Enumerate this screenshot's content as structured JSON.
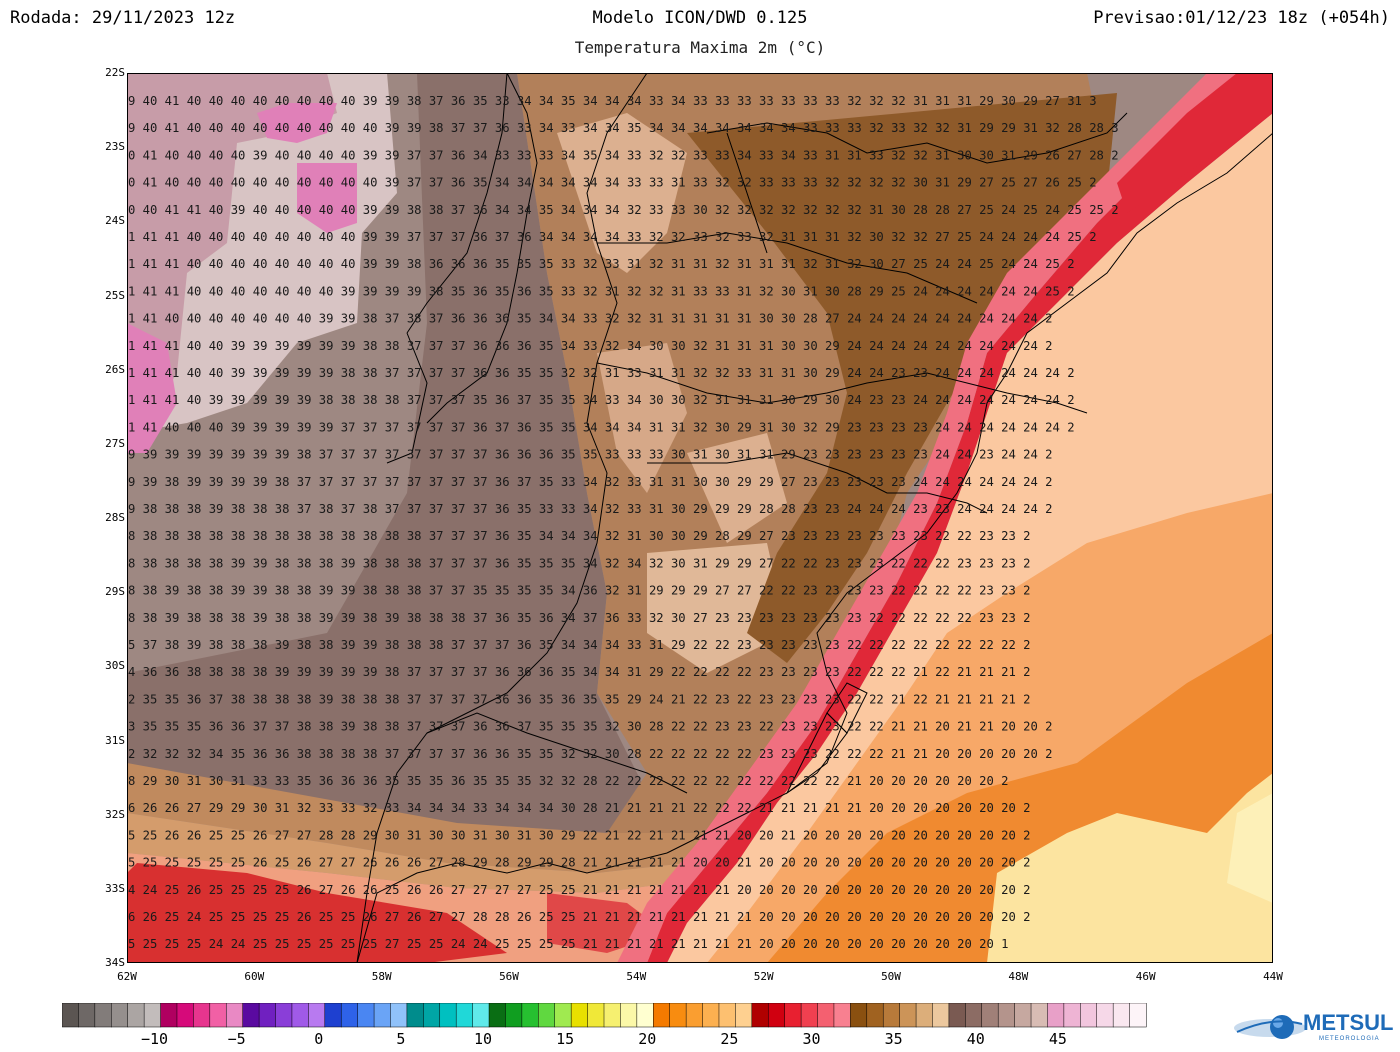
{
  "header": {
    "run": "Rodada: 29/11/2023 12z",
    "model": "Modelo ICON/DWD 0.125",
    "forecast": "Previsao:01/12/23 18z (+054h)",
    "variable": "Temperatura Maxima 2m (°C)"
  },
  "map": {
    "lat_labels": [
      "22S",
      "23S",
      "24S",
      "25S",
      "26S",
      "27S",
      "28S",
      "29S",
      "30S",
      "31S",
      "32S",
      "33S",
      "34S"
    ],
    "lon_labels": [
      "62W",
      "60W",
      "58W",
      "56W",
      "54W",
      "52W",
      "50W",
      "48W",
      "46W",
      "44W"
    ],
    "lat_range": [
      -34,
      -22
    ],
    "lon_range": [
      -62,
      -44
    ],
    "temperature_rows": [
      "9 40 41 40 40 40 40 40 40 40 40 39 39 38 37 36 35 33 34 34 35 34 34 34 33 34 33 33 33 33 33 33 33 32 32 32 31 31 31 29 30 29 27 31 3",
      "9 40 41 40 40 40 40 40 40 40 40 40 39 39 38 37 37 36 33 34 33 34 34 35 34 34 34 34 34 34 34 33 33 33 32 33 32 32 31 29 29 31 32 28 28 3",
      "0 41 40 40 40 40 39 40 40 40 40 39 39 37 37 36 34 33 33 33 34 35 34 33 32 32 33 33 34 33 34 33 31 31 33 32 32 31 30 30 31 29 26 27 28 2",
      "0 41 40 40 40 40 40 40 40 40 40 40 39 37 37 36 35 34 34 34 34 34 34 33 33 31 33 32 32 33 33 33 32 32 32 32 30 31 29 27 25 27 26 25 2",
      "0 40 41 41 40 39 40 40 40 40 40 39 39 38 38 37 36 34 34 35 34 34 34 32 33 33 30 32 32 32 32 32 32 32 31 30 28 28 27 25 24 25 24 25 25 2",
      "1 41 41 40 40 40 40 40 40 40 40 39 39 37 37 37 36 37 36 34 34 34 34 33 32 32 33 32 33 32 31 31 31 32 30 32 32 27 25 24 24 24 24 25 2",
      "1 41 41 40 40 40 40 40 40 40 40 39 39 38 36 36 36 35 35 35 33 32 33 31 32 31 31 32 31 31 31 32 31 32 30 27 25 24 24 25 24 24 25 2",
      "1 41 41 40 40 40 40 40 40 40 39 39 39 39 38 35 36 35 36 35 33 32 31 32 32 31 33 33 31 32 30 31 30 28 29 25 24 24 24 24 24 24 25 2",
      "1 41 40 40 40 40 40 40 40 39 39 38 37 38 37 36 36 36 35 34 34 33 32 32 31 31 31 31 31 30 30 28 27 24 24 24 24 24 24 24 24 24 2",
      "1 41 41 40 40 39 39 39 39 39 39 38 38 37 37 37 36 36 36 35 34 33 32 34 30 30 32 31 31 31 30 30 29 24 24 24 24 24 24 24 24 24 2",
      "1 41 41 40 40 39 39 39 39 39 38 38 37 37 37 37 36 36 35 35 32 32 31 33 31 31 32 32 33 31 31 30 29 24 24 23 23 24 24 24 24 24 24 2",
      "1 41 41 40 39 39 39 39 39 38 38 38 38 37 37 37 35 36 37 35 35 34 33 34 30 30 32 31 31 31 30 29 30 24 23 23 24 24 24 24 24 24 24 2",
      "1 41 40 40 40 39 39 39 39 39 37 37 37 37 37 37 36 37 36 35 35 34 34 34 31 31 32 30 29 31 30 32 29 23 23 23 23 24 24 24 24 24 24 2",
      "9 39 39 39 39 39 39 39 38 37 37 37 37 37 37 37 37 36 36 36 35 35 33 33 33 30 31 30 31 31 29 23 23 23 23 23 23 24 24 23 24 24 2",
      "9 39 38 39 39 39 39 38 37 37 37 37 37 37 37 37 37 36 37 35 33 34 32 33 31 31 30 30 29 29 27 23 23 23 23 23 24 24 24 24 24 24 2",
      "9 38 38 38 39 38 38 38 37 38 37 38 37 37 37 37 37 36 35 33 33 34 32 33 31 30 29 29 29 28 28 23 23 24 24 24 23 23 24 24 24 24 2",
      "8 38 38 38 38 38 38 38 38 38 38 38 38 38 37 37 37 36 35 34 34 34 32 31 30 30 29 28 29 27 23 23 23 23 23 23 23 22 22 23 23 2",
      "8 38 38 38 38 39 39 38 38 38 39 38 38 38 37 37 37 36 35 35 35 34 32 34 32 30 31 29 29 27 22 22 23 23 23 22 22 22 23 23 23 2",
      "8 38 39 38 38 39 39 38 38 39 39 38 38 38 37 37 35 35 35 35 34 36 32 31 29 29 29 27 27 22 22 23 23 23 23 22 22 22 22 23 23 2",
      "8 38 39 38 38 38 39 38 38 39 39 38 39 38 38 38 37 36 35 36 34 37 36 33 32 30 27 23 23 23 23 23 23 23 22 22 22 22 22 23 23 2",
      "5 37 38 39 38 38 38 39 38 38 39 39 38 38 38 37 37 37 36 35 34 34 34 33 31 29 22 22 23 23 23 23 23 22 22 22 22 22 22 22 22 2",
      "4 36 36 38 38 38 38 39 39 39 39 39 38 37 37 37 37 36 36 36 35 34 34 31 29 22 22 22 22 23 23 23 23 22 22 22 21 22 21 21 21 2",
      "2 35 35 36 37 38 38 38 38 39 38 38 38 37 37 37 37 36 36 35 36 35 35 29 24 21 22 23 22 23 23 23 23 22 22 21 22 21 21 21 21 2",
      "3 35 35 35 36 36 37 37 38 38 39 38 38 37 37 37 36 36 37 35 35 35 32 30 28 22 22 23 23 22 23 23 23 22 22 21 21 20 21 21 20 20 2",
      "2 32 32 32 34 35 36 36 38 38 38 38 37 37 37 37 36 36 35 35 32 32 30 28 22 22 22 22 22 23 23 23 22 22 22 21 21 20 20 20 20 20 2",
      "8 29 30 31 30 31 33 33 35 36 36 36 35 35 35 36 35 35 35 32 32 28 22 22 22 22 22 22 22 22 22 22 22 21 20 20 20 20 20 20 2",
      "6 26 26 27 29 29 30 31 32 33 33 32 33 34 34 34 33 34 34 34 30 28 21 21 21 21 22 22 22 21 21 21 21 21 20 20 20 20 20 20 20 2",
      "5 25 26 26 25 25 26 27 27 28 28 29 30 31 30 30 31 30 31 30 29 22 21 22 21 21 21 21 20 20 21 20 20 20 20 20 20 20 20 20 20 2",
      "5 25 25 25 25 25 26 25 26 27 27 26 26 26 27 28 29 28 29 29 28 21 21 21 21 21 20 20 21 20 20 20 20 20 20 20 20 20 20 20 20 2",
      "4 24 25 26 25 25 25 25 26 27 26 26 25 26 26 27 27 27 27 25 25 21 21 21 21 21 21 21 20 20 20 20 20 20 20 20 20 20 20 20 20 2",
      "6 26 25 24 25 25 25 25 26 25 25 26 27 26 27 27 28 28 26 25 25 21 21 21 21 21 21 21 21 20 20 20 20 20 20 20 20 20 20 20 20 2",
      "5 25 25 25 24 24 25 25 25 25 25 25 27 25 25 24 24 25 25 25 25 21 21 21 21 21 21 21 21 20 20 20 20 20 20 20 20 20 20 20 1"
    ]
  },
  "colorbar": {
    "labels": [
      "−10",
      "−5",
      "0",
      "5",
      "10",
      "15",
      "20",
      "25",
      "30",
      "35",
      "40",
      "45"
    ],
    "colors": [
      "#5b5552",
      "#6e6866",
      "#827c7a",
      "#958f8d",
      "#aba5a3",
      "#c2bcbb",
      "#b00060",
      "#d60a7a",
      "#e7358e",
      "#f160a5",
      "#e989c4",
      "#5a0aa0",
      "#7020c0",
      "#8a3ed8",
      "#a05ae8",
      "#b87af0",
      "#1e40d0",
      "#2e62e8",
      "#4a86f2",
      "#6aa4f6",
      "#90c2fa",
      "#008c8c",
      "#00a6a6",
      "#00c0c0",
      "#20d8d8",
      "#60eaea",
      "#0a6e14",
      "#109e20",
      "#26c030",
      "#60d840",
      "#a0ea50",
      "#e8e000",
      "#f0e838",
      "#f6f070",
      "#fbf8a8",
      "#ffffd0",
      "#f47a00",
      "#f88c10",
      "#fa9e30",
      "#fcb050",
      "#fdc070",
      "#fed090",
      "#b00000",
      "#d00010",
      "#e82030",
      "#f04050",
      "#f46070",
      "#f88090",
      "#8a5010",
      "#a06220",
      "#b87a3a",
      "#cc9458",
      "#dcae7a",
      "#ecc89e",
      "#7a5a52",
      "#8c6c64",
      "#a08078",
      "#b4948c",
      "#c6a8a0",
      "#d8bcb4",
      "#e8a0c8",
      "#eeb4d4",
      "#f2c6de",
      "#f6d8e8",
      "#fae8f0",
      "#fdf4f8"
    ]
  },
  "logo": {
    "name": "METSUL",
    "tagline": "METEOROLOGIA"
  }
}
